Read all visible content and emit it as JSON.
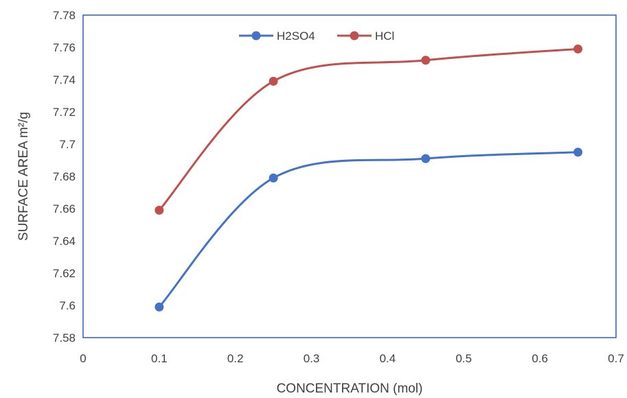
{
  "chart_data": {
    "type": "line",
    "title": "",
    "xlabel": "CONCENTRATION (mol)",
    "ylabel": "SURFACE AREA m²/g",
    "xlim": [
      0,
      0.7
    ],
    "ylim": [
      7.58,
      7.78
    ],
    "x_ticks": [
      "0",
      "0.1",
      "0.2",
      "0.3",
      "0.4",
      "0.5",
      "0.6",
      "0.7"
    ],
    "y_ticks": [
      "7.58",
      "7.6",
      "7.62",
      "7.64",
      "7.66",
      "7.68",
      "7.7",
      "7.72",
      "7.74",
      "7.76",
      "7.78"
    ],
    "grid": false,
    "legend_position": "top-center",
    "series": [
      {
        "name": "H2SO4",
        "color": "#4472C4",
        "x": [
          0.1,
          0.25,
          0.45,
          0.65
        ],
        "y": [
          7.599,
          7.679,
          7.691,
          7.695
        ]
      },
      {
        "name": "HCl",
        "color": "#C0504D",
        "x": [
          0.1,
          0.25,
          0.45,
          0.65
        ],
        "y": [
          7.659,
          7.739,
          7.752,
          7.759
        ]
      }
    ]
  }
}
